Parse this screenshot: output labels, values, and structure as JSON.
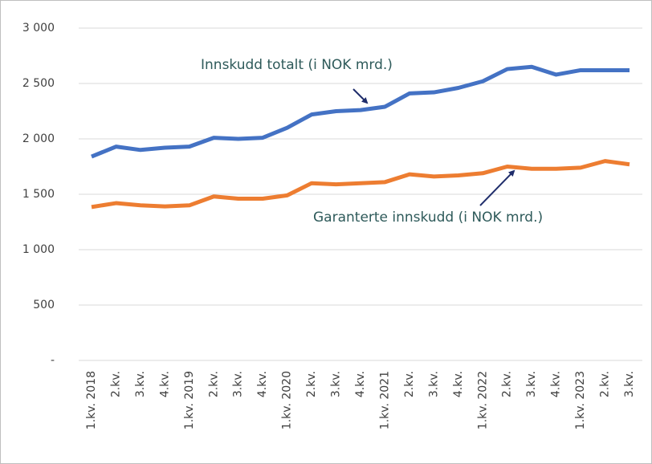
{
  "chart_data": {
    "type": "line",
    "categories": [
      "1.kv. 2018",
      "2.kv.",
      "3.kv.",
      "4.kv.",
      "1.kv. 2019",
      "2.kv.",
      "3.kv.",
      "4.kv.",
      "1.kv. 2020",
      "2.kv.",
      "3.kv.",
      "4.kv.",
      "1.kv. 2021",
      "2.kv.",
      "3.kv.",
      "4.kv.",
      "1.kv. 2022",
      "2.kv.",
      "3.kv.",
      "4.kv.",
      "1.kv. 2023",
      "2.kv.",
      "3.kv."
    ],
    "series": [
      {
        "name": "Innskudd totalt (i NOK mrd.)",
        "color": "#4472c4",
        "values": [
          1840,
          1930,
          1900,
          1920,
          1930,
          2010,
          2000,
          2010,
          2100,
          2220,
          2250,
          2260,
          2290,
          2410,
          2420,
          2460,
          2520,
          2630,
          2650,
          2580,
          2620,
          2620,
          2620
        ]
      },
      {
        "name": "Garanterte innskudd (i NOK mrd.)",
        "color": "#ed7d31",
        "values": [
          1385,
          1420,
          1400,
          1390,
          1400,
          1480,
          1460,
          1460,
          1490,
          1600,
          1590,
          1600,
          1610,
          1680,
          1660,
          1670,
          1690,
          1750,
          1730,
          1730,
          1740,
          1800,
          1770
        ]
      }
    ],
    "ylim": [
      0,
      3000
    ],
    "yticks": [
      {
        "value": 0,
        "label": "-"
      },
      500,
      {
        "value": 1000,
        "label": "1 000"
      },
      {
        "value": 1500,
        "label": "1 500"
      },
      {
        "value": 2000,
        "label": "2 000"
      },
      {
        "value": 2500,
        "label": "2 500"
      },
      {
        "value": 3000,
        "label": "3 000"
      }
    ],
    "grid": true
  }
}
